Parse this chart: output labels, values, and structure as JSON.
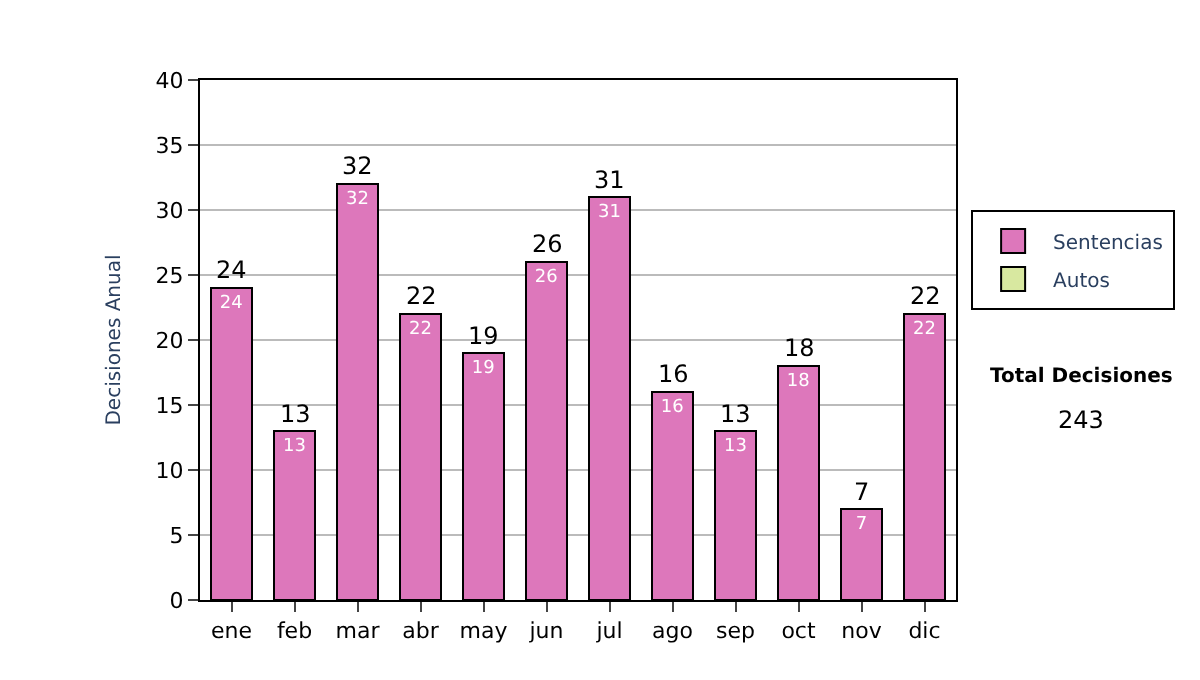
{
  "chart_data": {
    "type": "bar",
    "ylabel": "Decisiones Anual",
    "categories": [
      "ene",
      "feb",
      "mar",
      "abr",
      "may",
      "jun",
      "jul",
      "ago",
      "sep",
      "oct",
      "nov",
      "dic"
    ],
    "series": [
      {
        "name": "Sentencias",
        "color": "#dd77bb",
        "values": [
          24,
          13,
          32,
          22,
          19,
          26,
          31,
          16,
          13,
          18,
          7,
          22
        ]
      },
      {
        "name": "Autos",
        "color": "#d8e8a0",
        "values": [
          null,
          null,
          null,
          null,
          null,
          null,
          null,
          null,
          null,
          null,
          null,
          null
        ]
      }
    ],
    "stacked": true,
    "data_labels": true,
    "totals": [
      "24",
      "13",
      "32",
      "22",
      "19",
      "26",
      "31",
      "16",
      "13",
      "18",
      "7",
      "22"
    ],
    "ylim": [
      0,
      40
    ],
    "yticks": [
      0,
      5,
      10,
      15,
      20,
      25,
      30,
      35,
      40
    ],
    "grid": "y",
    "legend": "right",
    "annotations": [
      "Total Decisiones",
      "243"
    ]
  }
}
